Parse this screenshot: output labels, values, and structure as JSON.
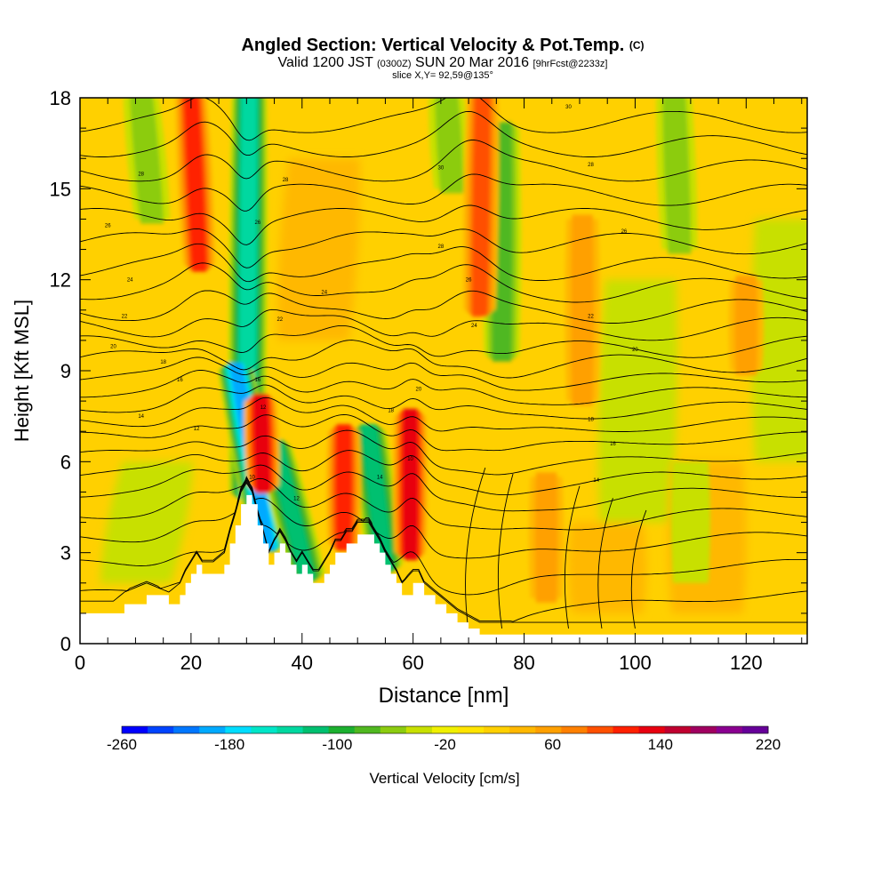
{
  "header": {
    "title_main": "Angled Section: Vertical Velocity & Pot.Temp.",
    "title_unit": "(C)",
    "valid_prefix": "Valid 1200 JST",
    "valid_utc": "(0300Z)",
    "valid_date": "SUN 20 Mar 2016",
    "valid_fcst": "[9hrFcst@2233z]",
    "slice": "slice X,Y= 92,59@135°"
  },
  "chart_data": {
    "type": "heatmap",
    "xlabel": "Distance [nm]",
    "ylabel": "Height [Kft MSL]",
    "xlim": [
      0,
      131
    ],
    "ylim": [
      0,
      18
    ],
    "x_ticks": [
      0,
      20,
      40,
      60,
      80,
      100,
      120
    ],
    "y_ticks": [
      0,
      3,
      6,
      9,
      12,
      15,
      18
    ],
    "colorbar": {
      "label": "Vertical Velocity [cm/s]",
      "min": -260,
      "max": 220,
      "step": 20,
      "tick_labels": [
        -260,
        -180,
        -100,
        -20,
        60,
        140,
        220
      ],
      "colors": [
        "#0000ff",
        "#0044ff",
        "#0077ff",
        "#00aaff",
        "#00ddff",
        "#00e6c8",
        "#00d8a0",
        "#00c070",
        "#1cb030",
        "#50b820",
        "#8ccc10",
        "#c8e000",
        "#f0f000",
        "#ffe400",
        "#ffd000",
        "#ffb800",
        "#ffa000",
        "#ff8000",
        "#ff5000",
        "#ff2000",
        "#e80010",
        "#c00030",
        "#a00060",
        "#8a0090",
        "#660099"
      ]
    },
    "terrain": {
      "x": [
        0,
        6,
        8,
        12,
        16,
        18,
        19,
        20,
        21,
        22,
        24,
        26,
        27,
        28,
        29,
        30,
        31,
        32,
        33,
        34,
        35,
        36,
        37,
        38,
        39,
        40,
        41,
        42,
        43,
        44,
        45,
        46,
        47,
        48,
        49,
        50,
        52,
        53,
        54,
        55,
        56,
        57,
        58,
        60,
        61,
        62,
        64,
        66,
        68,
        70,
        72,
        75,
        80,
        85,
        90,
        95,
        100,
        110,
        120,
        131
      ],
      "y": [
        1.0,
        1.0,
        1.3,
        1.6,
        1.3,
        1.6,
        2.0,
        2.3,
        2.6,
        2.3,
        2.3,
        2.6,
        3.3,
        3.9,
        4.6,
        4.9,
        4.6,
        3.9,
        3.3,
        2.6,
        3.0,
        3.3,
        3.0,
        2.6,
        2.3,
        2.6,
        2.3,
        2.0,
        2.0,
        2.3,
        2.6,
        3.0,
        3.0,
        3.3,
        3.3,
        3.6,
        3.6,
        3.3,
        3.0,
        2.6,
        2.3,
        2.0,
        1.6,
        2.0,
        2.0,
        1.6,
        1.3,
        1.0,
        0.7,
        0.5,
        0.3,
        0.3,
        0.3,
        0.3,
        0.3,
        0.3,
        0.3,
        0.3,
        0.3,
        0.3
      ]
    },
    "updraft_cores": [
      {
        "x0": 21.5,
        "x1": 20.0,
        "y0": 12.5,
        "y1": 18.0,
        "value": 120
      },
      {
        "x0": 33.0,
        "x1": 32.5,
        "y0": 5.2,
        "y1": 8.0,
        "value": 140
      },
      {
        "x0": 47.5,
        "x1": 47.5,
        "y0": 3.3,
        "y1": 7.0,
        "value": 130
      },
      {
        "x0": 59.5,
        "x1": 59.5,
        "y0": 3.0,
        "y1": 7.5,
        "value": 150
      },
      {
        "x0": 72.0,
        "x1": 72.5,
        "y0": 11.0,
        "y1": 18.0,
        "value": 110
      },
      {
        "x0": 84.0,
        "x1": 84.0,
        "y0": 1.5,
        "y1": 5.5,
        "value": 70
      },
      {
        "x0": 90.5,
        "x1": 90.5,
        "y0": 8.0,
        "y1": 14.0,
        "value": 70
      },
      {
        "x0": 120.0,
        "x1": 120.0,
        "y0": 9.0,
        "y1": 12.0,
        "value": 60
      }
    ],
    "downdraft_bands": [
      {
        "x0": 30.0,
        "x1": 30.5,
        "y0": 5.0,
        "y1": 18.0,
        "value": -140
      },
      {
        "x0": 34.0,
        "x1": 28.0,
        "y0": 3.3,
        "y1": 9.0,
        "value": -200
      },
      {
        "x0": 41.0,
        "x1": 35.0,
        "y0": 2.3,
        "y1": 6.5,
        "value": -120
      },
      {
        "x0": 55.0,
        "x1": 52.0,
        "y0": 2.6,
        "y1": 7.0,
        "value": -120
      },
      {
        "x0": 76.0,
        "x1": 76.0,
        "y0": 9.5,
        "y1": 17.0,
        "value": -80
      },
      {
        "x0": 13.0,
        "x1": 11.0,
        "y0": 14.0,
        "y1": 18.0,
        "value": -60
      },
      {
        "x0": 67.0,
        "x1": 66.0,
        "y0": 15.0,
        "y1": 18.0,
        "value": -60
      },
      {
        "x0": 108.0,
        "x1": 107.0,
        "y0": 13.0,
        "y1": 18.0,
        "value": -60
      },
      {
        "x0": 110.0,
        "x1": 110.0,
        "y0": 2.0,
        "y1": 6.0,
        "value": -50
      }
    ],
    "theta_contour_base_heights_kft": [
      0.5,
      1.6,
      2.6,
      3.5,
      4.3,
      5.0,
      5.6,
      6.2,
      6.8,
      7.3,
      7.8,
      8.3,
      8.8,
      9.3,
      9.8,
      10.4,
      11.0,
      11.7,
      12.4,
      13.2,
      14.0,
      14.8,
      15.6,
      16.4,
      17.2
    ],
    "contour_labels": [
      {
        "x": 11,
        "y": 7.5,
        "text": "14"
      },
      {
        "x": 18,
        "y": 8.7,
        "text": "16"
      },
      {
        "x": 15,
        "y": 9.3,
        "text": "18"
      },
      {
        "x": 6,
        "y": 9.8,
        "text": "20"
      },
      {
        "x": 8,
        "y": 10.8,
        "text": "22"
      },
      {
        "x": 9,
        "y": 12.0,
        "text": "24"
      },
      {
        "x": 5,
        "y": 13.8,
        "text": "26"
      },
      {
        "x": 11,
        "y": 15.5,
        "text": "28"
      },
      {
        "x": 21,
        "y": 7.1,
        "text": "12"
      },
      {
        "x": 32,
        "y": 13.9,
        "text": "26"
      },
      {
        "x": 37,
        "y": 15.3,
        "text": "28"
      },
      {
        "x": 44,
        "y": 11.6,
        "text": "24"
      },
      {
        "x": 36,
        "y": 10.7,
        "text": "22"
      },
      {
        "x": 32,
        "y": 8.7,
        "text": "16"
      },
      {
        "x": 33,
        "y": 7.8,
        "text": "12"
      },
      {
        "x": 31,
        "y": 5.5,
        "text": "10"
      },
      {
        "x": 39,
        "y": 4.8,
        "text": "12"
      },
      {
        "x": 54,
        "y": 5.5,
        "text": "14"
      },
      {
        "x": 56,
        "y": 7.7,
        "text": "18"
      },
      {
        "x": 61,
        "y": 8.4,
        "text": "20"
      },
      {
        "x": 59.5,
        "y": 6.1,
        "text": "10"
      },
      {
        "x": 65,
        "y": 15.7,
        "text": "30"
      },
      {
        "x": 65,
        "y": 13.1,
        "text": "28"
      },
      {
        "x": 70,
        "y": 12.0,
        "text": "26"
      },
      {
        "x": 71,
        "y": 10.5,
        "text": "24"
      },
      {
        "x": 92,
        "y": 10.8,
        "text": "22"
      },
      {
        "x": 92,
        "y": 7.4,
        "text": "18"
      },
      {
        "x": 96,
        "y": 6.6,
        "text": "16"
      },
      {
        "x": 93,
        "y": 5.4,
        "text": "14"
      },
      {
        "x": 100,
        "y": 9.7,
        "text": "20"
      },
      {
        "x": 98,
        "y": 13.6,
        "text": "26"
      },
      {
        "x": 92,
        "y": 15.8,
        "text": "28"
      },
      {
        "x": 88,
        "y": 17.7,
        "text": "30"
      }
    ]
  }
}
